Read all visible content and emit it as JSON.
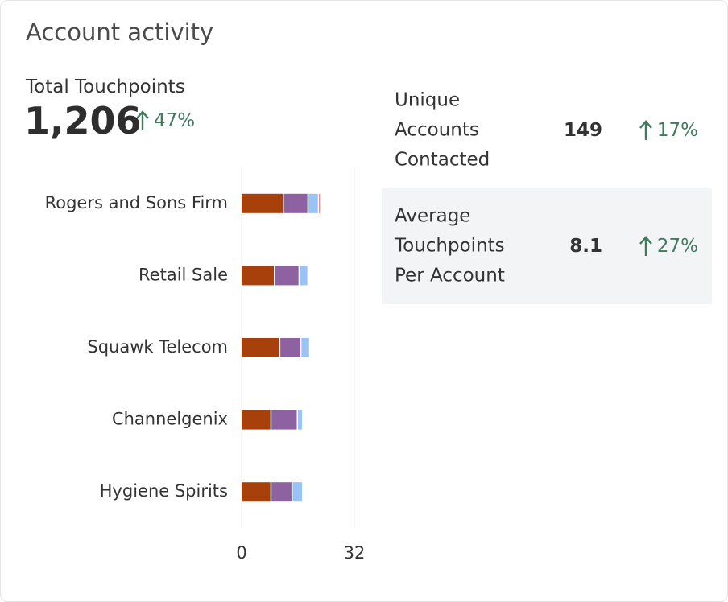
{
  "header": {
    "title": "Account activity"
  },
  "total": {
    "label": "Total Touchpoints",
    "value": "1,206",
    "change": "47%"
  },
  "metrics": [
    {
      "label": "Unique Accounts Contacted",
      "value": "149",
      "change": "17%"
    },
    {
      "label": "Average Touchpoints Per Account",
      "value": "8.1",
      "change": "27%"
    }
  ],
  "chart_data": {
    "type": "bar",
    "orientation": "horizontal",
    "stacked": true,
    "categories": [
      "Rogers and Sons Firm",
      "Retail Sale",
      "Squawk Telecom",
      "Channelgenix",
      "Hygiene Spirits"
    ],
    "series": [
      {
        "color": "#a8400c",
        "values": [
          12,
          9.5,
          11,
          8.5,
          8.5
        ]
      },
      {
        "color": "#8e62a0",
        "values": [
          7,
          7,
          6,
          7.5,
          6
        ]
      },
      {
        "color": "#99c2f5",
        "values": [
          3,
          2.5,
          2.5,
          1.5,
          3
        ]
      },
      {
        "color": "#e8685d",
        "values": [
          0.5,
          0,
          0,
          0,
          0
        ]
      }
    ],
    "xlim": [
      0,
      32
    ],
    "xticks": [
      0,
      32
    ],
    "grid": true
  }
}
